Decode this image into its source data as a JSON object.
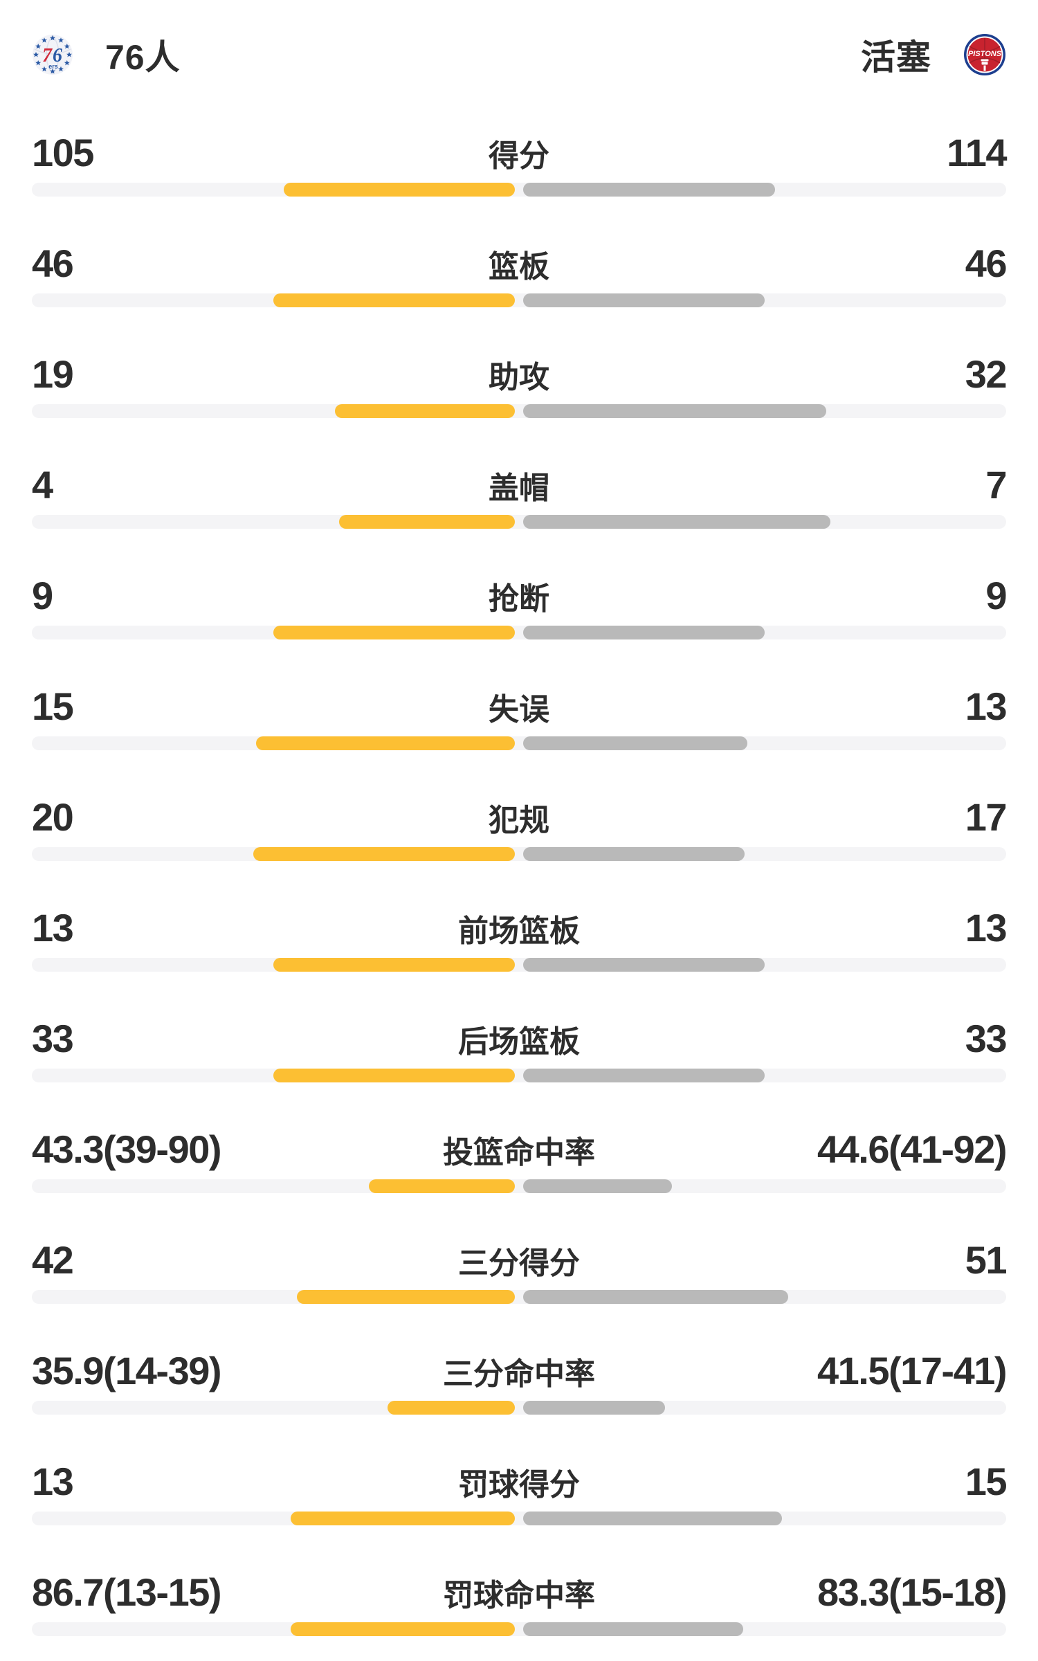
{
  "header": {
    "home": {
      "name": "76人",
      "logo": "sixers-logo"
    },
    "away": {
      "name": "活塞",
      "logo": "pistons-logo"
    }
  },
  "colors": {
    "home_bar": "#fcbf33",
    "away_bar": "#b9b9b9",
    "track": "#f4f4f6",
    "text": "#2d2d2d",
    "sixers_blue": "#2b5aa5",
    "sixers_red": "#d02a3c",
    "pistons_red": "#c8232f",
    "pistons_blue": "#1d3f8f"
  },
  "stats": [
    {
      "label": "得分",
      "home": "105",
      "away": "114",
      "home_pct": 47.9,
      "away_pct": 52.1
    },
    {
      "label": "篮板",
      "home": "46",
      "away": "46",
      "home_pct": 50,
      "away_pct": 50
    },
    {
      "label": "助攻",
      "home": "19",
      "away": "32",
      "home_pct": 37.3,
      "away_pct": 62.7
    },
    {
      "label": "盖帽",
      "home": "4",
      "away": "7",
      "home_pct": 36.4,
      "away_pct": 63.6
    },
    {
      "label": "抢断",
      "home": "9",
      "away": "9",
      "home_pct": 50,
      "away_pct": 50
    },
    {
      "label": "失误",
      "home": "15",
      "away": "13",
      "home_pct": 53.6,
      "away_pct": 46.4
    },
    {
      "label": "犯规",
      "home": "20",
      "away": "17",
      "home_pct": 54.1,
      "away_pct": 45.9
    },
    {
      "label": "前场篮板",
      "home": "13",
      "away": "13",
      "home_pct": 50,
      "away_pct": 50
    },
    {
      "label": "后场篮板",
      "home": "33",
      "away": "33",
      "home_pct": 50,
      "away_pct": 50
    },
    {
      "label": "投篮命中率",
      "home": "43.3(39-90)",
      "away": "44.6(41-92)",
      "home_pct": 30.2,
      "away_pct": 30.8
    },
    {
      "label": "三分得分",
      "home": "42",
      "away": "51",
      "home_pct": 45.2,
      "away_pct": 54.8
    },
    {
      "label": "三分命中率",
      "home": "35.9(14-39)",
      "away": "41.5(17-41)",
      "home_pct": 26.4,
      "away_pct": 29.3
    },
    {
      "label": "罚球得分",
      "home": "13",
      "away": "15",
      "home_pct": 46.4,
      "away_pct": 53.6
    },
    {
      "label": "罚球命中率",
      "home": "86.7(13-15)",
      "away": "83.3(15-18)",
      "home_pct": 46.4,
      "away_pct": 45.5
    }
  ]
}
